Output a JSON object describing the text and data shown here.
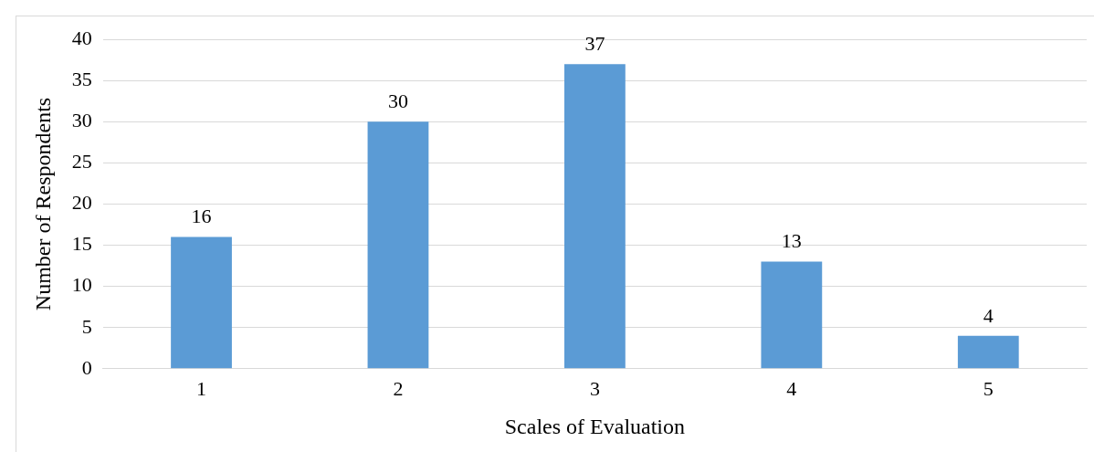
{
  "chart_data": {
    "type": "bar",
    "xlabel": "Scales of Evaluation",
    "ylabel": "Number of Respondents",
    "categories": [
      "1",
      "2",
      "3",
      "4",
      "5"
    ],
    "values": [
      16,
      30,
      37,
      13,
      4
    ],
    "color": "#5b9bd5",
    "ylim": [
      0,
      40
    ],
    "yticks": [
      0,
      5,
      10,
      15,
      20,
      25,
      30,
      35,
      40
    ],
    "grid": "y",
    "data_labels": true,
    "legend": false
  }
}
